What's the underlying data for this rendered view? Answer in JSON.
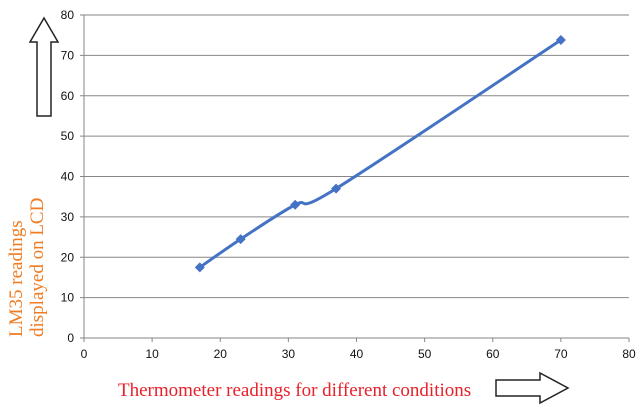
{
  "chart_data": {
    "type": "line",
    "xlabel": "Thermometer readings for different conditions",
    "ylabel_lines": [
      "LM35 readings",
      "displayed on LCD"
    ],
    "xlim": [
      0,
      80
    ],
    "ylim": [
      0,
      80
    ],
    "xticks": [
      0,
      10,
      20,
      30,
      40,
      50,
      60,
      70,
      80
    ],
    "yticks": [
      0,
      10,
      20,
      30,
      40,
      50,
      60,
      70,
      80
    ],
    "grid": "horizontal",
    "legend": "none",
    "series": [
      {
        "color": "#4472c4",
        "marker": "diamond",
        "points": [
          {
            "x": 17,
            "y": 17.5
          },
          {
            "x": 23,
            "y": 24.5
          },
          {
            "x": 31,
            "y": 33
          },
          {
            "x": 37,
            "y": 37
          },
          {
            "x": 70,
            "y": 73.8
          }
        ]
      }
    ],
    "colors": {
      "line": "#4472c4",
      "grid": "#868686",
      "axis": "#868686",
      "xlabel": "#e8202a",
      "ylabel": "#ef7b22",
      "arrow_stroke": "#222222"
    },
    "icons": [
      "up-arrow-icon",
      "right-arrow-icon"
    ]
  }
}
